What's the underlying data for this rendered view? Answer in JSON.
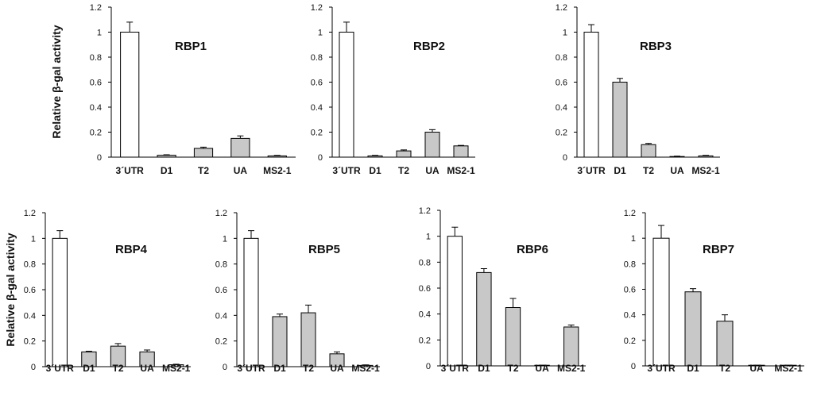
{
  "ylabel": "Relative β-gal activity",
  "colors": {
    "control_bar": "#ffffff",
    "treated_bar": "#c8c8c8",
    "stroke": "#000000"
  },
  "chart_data": [
    {
      "type": "bar",
      "title": "RBP1",
      "ylabel": "Relative β-gal activity",
      "categories": [
        "3´UTR",
        "D1",
        "T2",
        "UA",
        "MS2-1"
      ],
      "values": [
        1.0,
        0.015,
        0.07,
        0.15,
        0.01
      ],
      "errors": [
        0.08,
        0.004,
        0.01,
        0.02,
        0.004
      ],
      "ylim": [
        0,
        1.2
      ],
      "yticks": [
        "0",
        "0.2",
        "0.4",
        "0.6",
        "0.8",
        "1",
        "1.2"
      ]
    },
    {
      "type": "bar",
      "title": "RBP2",
      "ylabel": "",
      "categories": [
        "3´UTR",
        "D1",
        "T2",
        "UA",
        "MS2-1"
      ],
      "values": [
        1.0,
        0.01,
        0.05,
        0.2,
        0.09
      ],
      "errors": [
        0.08,
        0.004,
        0.008,
        0.02,
        0.004
      ],
      "ylim": [
        0,
        1.2
      ],
      "yticks": [
        "0",
        "0.2",
        "0.4",
        "0.6",
        "0.8",
        "1",
        "1.2"
      ]
    },
    {
      "type": "bar",
      "title": "RBP3",
      "ylabel": "",
      "categories": [
        "3´UTR",
        "D1",
        "T2",
        "UA",
        "MS2-1"
      ],
      "values": [
        1.0,
        0.6,
        0.1,
        0.005,
        0.01
      ],
      "errors": [
        0.06,
        0.03,
        0.01,
        0.003,
        0.004
      ],
      "ylim": [
        0,
        1.2
      ],
      "yticks": [
        "0",
        "0.2",
        "0.4",
        "0.6",
        "0.8",
        "1",
        "1.2"
      ]
    },
    {
      "type": "bar",
      "title": "RBP4",
      "ylabel": "Relative β-gal activity",
      "categories": [
        "3´UTR",
        "D1",
        "T2",
        "UA",
        "MS2-1"
      ],
      "values": [
        1.0,
        0.115,
        0.16,
        0.115,
        0.015
      ],
      "errors": [
        0.06,
        0.005,
        0.02,
        0.015,
        0.004
      ],
      "ylim": [
        0,
        1.2
      ],
      "yticks": [
        "0",
        "0.2",
        "0.4",
        "0.6",
        "0.8",
        "1",
        "1.2"
      ]
    },
    {
      "type": "bar",
      "title": "RBP5",
      "ylabel": "",
      "categories": [
        "3´UTR",
        "D1",
        "T2",
        "UA",
        "MS2-1"
      ],
      "values": [
        1.0,
        0.39,
        0.42,
        0.1,
        0.01
      ],
      "errors": [
        0.06,
        0.02,
        0.06,
        0.015,
        0.004
      ],
      "ylim": [
        0,
        1.2
      ],
      "yticks": [
        "0",
        "0.2",
        "0.4",
        "0.6",
        "0.8",
        "1",
        "1.2"
      ]
    },
    {
      "type": "bar",
      "title": "RBP6",
      "ylabel": "",
      "categories": [
        "3´UTR",
        "D1",
        "T2",
        "UA",
        "MS2-1"
      ],
      "values": [
        1.0,
        0.72,
        0.45,
        0.003,
        0.3
      ],
      "errors": [
        0.07,
        0.03,
        0.07,
        0.002,
        0.015
      ],
      "ylim": [
        0,
        1.2
      ],
      "yticks": [
        "0",
        "0.2",
        "0.4",
        "0.6",
        "0.8",
        "1",
        "1.2"
      ]
    },
    {
      "type": "bar",
      "title": "RBP7",
      "ylabel": "",
      "categories": [
        "3´UTR",
        "D1",
        "T2",
        "UA",
        "MS2-1"
      ],
      "values": [
        1.0,
        0.58,
        0.35,
        0.003,
        0.003
      ],
      "errors": [
        0.1,
        0.025,
        0.05,
        0.002,
        0.002
      ],
      "ylim": [
        0,
        1.2
      ],
      "yticks": [
        "0",
        "0.2",
        "0.4",
        "0.6",
        "0.8",
        "1",
        "1.2"
      ]
    }
  ]
}
